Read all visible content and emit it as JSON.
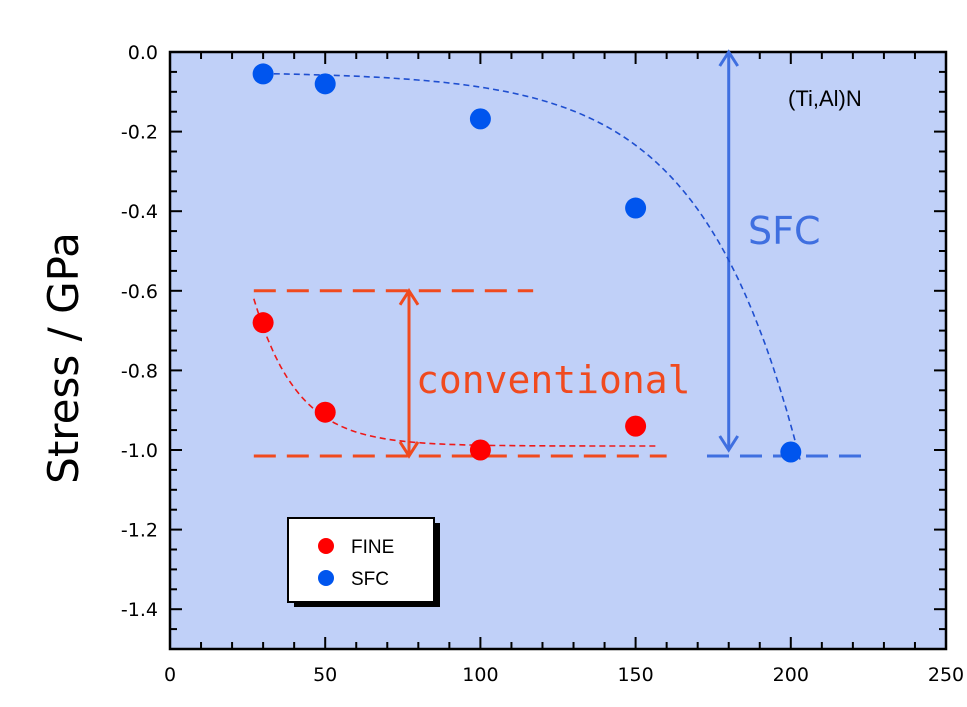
{
  "chart_data": {
    "type": "scatter",
    "xlim": [
      0,
      250
    ],
    "ylim": [
      -1.5,
      0.0
    ],
    "x_ticks": [
      0,
      50,
      100,
      150,
      200,
      250
    ],
    "x_tick_labels": [
      "0",
      "50",
      "100",
      "150",
      "200",
      "250"
    ],
    "y_ticks": [
      0.0,
      -0.2,
      -0.4,
      -0.6,
      -0.8,
      -1.0,
      -1.2,
      -1.4
    ],
    "y_tick_labels": [
      "0.0",
      "-0.2",
      "-0.4",
      "-0.6",
      "-0.8",
      "-1.0",
      "-1.2",
      "-1.4"
    ],
    "ylabel": "Stress / GPa",
    "xlabel": "",
    "grid": false,
    "series": [
      {
        "name": "FINE",
        "color": "#ff0000",
        "points": [
          [
            30,
            -0.68
          ],
          [
            50,
            -0.905
          ],
          [
            100,
            -1.0
          ],
          [
            150,
            -0.94
          ]
        ]
      },
      {
        "name": "SFC",
        "color": "#0055ee",
        "points": [
          [
            30,
            -0.055
          ],
          [
            50,
            -0.08
          ],
          [
            100,
            -0.168
          ],
          [
            150,
            -0.392
          ],
          [
            200,
            -1.005
          ]
        ]
      }
    ],
    "annotations": {
      "material": "(Ti,Al)N",
      "conventional": "conventional",
      "sfc": "SFC"
    },
    "legend_position": "lower-left",
    "colors": {
      "plot_background": "#c0d0f8",
      "red_annotation": "#f04a1f",
      "blue_annotation": "#3f6fe0"
    }
  }
}
